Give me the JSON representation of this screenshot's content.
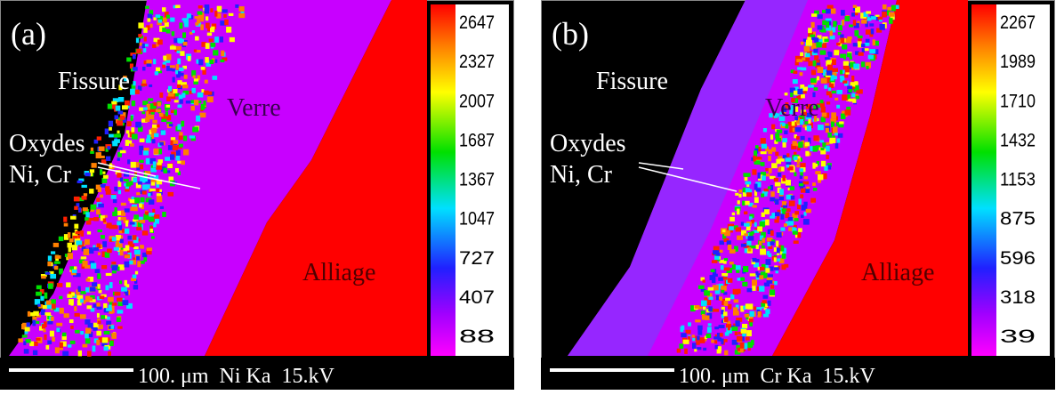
{
  "panels": [
    {
      "label": "(a)",
      "fissure": "Fissure",
      "verre": "Verre",
      "oxydes": "Oxydes",
      "ni_cr": "Ni, Cr",
      "alliage": "Alliage",
      "scale_text": "100. μm  Ni Ka  15.kV",
      "colorbar_labels": [
        "2647",
        "2327",
        "2007",
        "1687",
        "1367",
        "1047",
        "727",
        "407",
        "88"
      ]
    },
    {
      "label": "(b)",
      "fissure": "Fissure",
      "verre": "Verre",
      "oxydes": "Oxydes",
      "ni_cr": "Ni, Cr",
      "alliage": "Alliage",
      "scale_text": "100. μm  Cr Ka  15.kV",
      "colorbar_labels": [
        "2267",
        "1989",
        "1710",
        "1432",
        "1153",
        "875",
        "596",
        "318",
        "39"
      ]
    }
  ]
}
